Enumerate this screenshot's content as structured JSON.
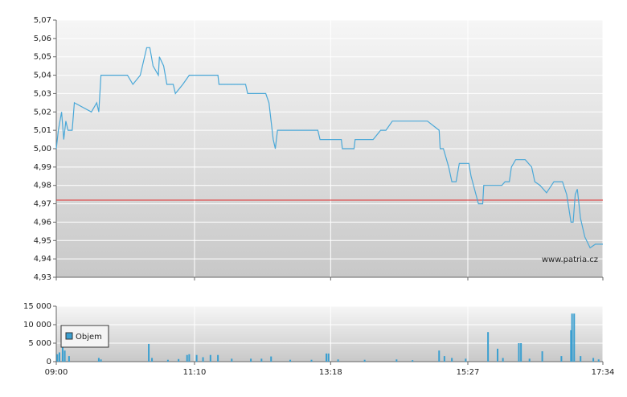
{
  "chart_data": [
    {
      "type": "line",
      "color": "#4aa8d8",
      "x": [
        "09:00",
        "09:02",
        "09:05",
        "09:07",
        "09:09",
        "09:11",
        "09:15",
        "09:17",
        "09:33",
        "09:38",
        "09:40",
        "09:42",
        "10:07",
        "10:12",
        "10:19",
        "10:25",
        "10:28",
        "10:31",
        "10:36",
        "10:37",
        "10:41",
        "10:44",
        "10:50",
        "10:52",
        "10:59",
        "11:05",
        "11:32",
        "11:33",
        "11:58",
        "12:00",
        "12:17",
        "12:20",
        "12:24",
        "12:26",
        "12:28",
        "13:06",
        "13:08",
        "13:28",
        "13:29",
        "13:40",
        "13:41",
        "13:58",
        "14:05",
        "14:10",
        "14:16",
        "14:49",
        "15:00",
        "15:01",
        "15:04",
        "15:09",
        "15:12",
        "15:16",
        "15:19",
        "15:28",
        "15:30",
        "15:37",
        "15:41",
        "15:42",
        "15:59",
        "16:02",
        "16:06",
        "16:08",
        "16:12",
        "16:21",
        "16:27",
        "16:30",
        "16:35",
        "16:41",
        "16:48",
        "16:56",
        "17:00",
        "17:04",
        "17:06",
        "17:08",
        "17:10",
        "17:13",
        "17:17",
        "17:22",
        "17:27",
        "17:34"
      ],
      "values": [
        5.0,
        5.01,
        5.02,
        5.005,
        5.015,
        5.01,
        5.01,
        5.025,
        5.02,
        5.025,
        5.02,
        5.04,
        5.04,
        5.035,
        5.04,
        5.055,
        5.055,
        5.045,
        5.04,
        5.05,
        5.045,
        5.035,
        5.035,
        5.03,
        5.035,
        5.04,
        5.04,
        5.035,
        5.035,
        5.03,
        5.03,
        5.025,
        5.005,
        5.0,
        5.01,
        5.01,
        5.005,
        5.005,
        5.0,
        5.0,
        5.005,
        5.005,
        5.01,
        5.01,
        5.015,
        5.015,
        5.01,
        5.0,
        5.0,
        4.99,
        4.982,
        4.982,
        4.992,
        4.992,
        4.985,
        4.97,
        4.97,
        4.98,
        4.98,
        4.982,
        4.982,
        4.99,
        4.994,
        4.994,
        4.99,
        4.982,
        4.98,
        4.976,
        4.982,
        4.982,
        4.975,
        4.96,
        4.96,
        4.975,
        4.978,
        4.962,
        4.952,
        4.946,
        4.948,
        4.948
      ],
      "xlim": [
        "09:00",
        "17:34"
      ],
      "ylim": [
        4.93,
        5.07
      ],
      "yticks": [
        {
          "value": 4.93,
          "label": "4,93"
        },
        {
          "value": 4.94,
          "label": "4,94"
        },
        {
          "value": 4.95,
          "label": "4,95"
        },
        {
          "value": 4.96,
          "label": "4,96"
        },
        {
          "value": 4.97,
          "label": "4,97"
        },
        {
          "value": 4.98,
          "label": "4,98"
        },
        {
          "value": 4.99,
          "label": "4,99"
        },
        {
          "value": 5.0,
          "label": "5,00"
        },
        {
          "value": 5.01,
          "label": "5,01"
        },
        {
          "value": 5.02,
          "label": "5,02"
        },
        {
          "value": 5.03,
          "label": "5,03"
        },
        {
          "value": 5.04,
          "label": "5,04"
        },
        {
          "value": 5.05,
          "label": "5,05"
        },
        {
          "value": 5.06,
          "label": "5,06"
        },
        {
          "value": 5.07,
          "label": "5,07"
        }
      ],
      "reference_line": {
        "value": 4.972,
        "color": "#e03030"
      },
      "annotation": "www.patria.cz",
      "grid": true
    },
    {
      "type": "bar",
      "x": [
        "09:01",
        "09:03",
        "09:06",
        "09:08",
        "09:12",
        "09:40",
        "09:42",
        "10:27",
        "10:30",
        "10:45",
        "10:55",
        "11:03",
        "11:05",
        "11:12",
        "11:18",
        "11:25",
        "11:32",
        "11:45",
        "12:03",
        "12:13",
        "12:22",
        "12:40",
        "13:00",
        "13:14",
        "13:16",
        "13:25",
        "13:50",
        "14:20",
        "14:35",
        "15:00",
        "15:05",
        "15:12",
        "15:25",
        "15:46",
        "15:55",
        "16:00",
        "16:15",
        "16:17",
        "16:25",
        "16:37",
        "16:55",
        "17:04",
        "17:05",
        "17:07",
        "17:13",
        "17:25",
        "17:30"
      ],
      "series": [
        {
          "name": "Objem",
          "color": "#3a9fd0",
          "values": [
            2000,
            2500,
            7800,
            3000,
            1500,
            1000,
            600,
            4800,
            1000,
            500,
            700,
            1800,
            2000,
            1800,
            1200,
            1800,
            1800,
            800,
            800,
            800,
            1400,
            500,
            500,
            2200,
            2200,
            600,
            500,
            600,
            400,
            3000,
            1500,
            1000,
            800,
            8000,
            3500,
            1000,
            5000,
            5000,
            800,
            2800,
            1500,
            8500,
            13000,
            13000,
            1500,
            1000,
            600
          ]
        }
      ],
      "xlim": [
        "09:00",
        "17:34"
      ],
      "xticks": [
        "09:00",
        "11:10",
        "13:18",
        "15:27",
        "17:34"
      ],
      "ylim": [
        0,
        15000
      ],
      "yticks": [
        0,
        {
          "value": 5000,
          "label": "5 000"
        },
        {
          "value": 10000,
          "label": "10 000"
        },
        {
          "value": 15000,
          "label": "15 000"
        }
      ],
      "legend": "top-left",
      "grid": true
    }
  ]
}
